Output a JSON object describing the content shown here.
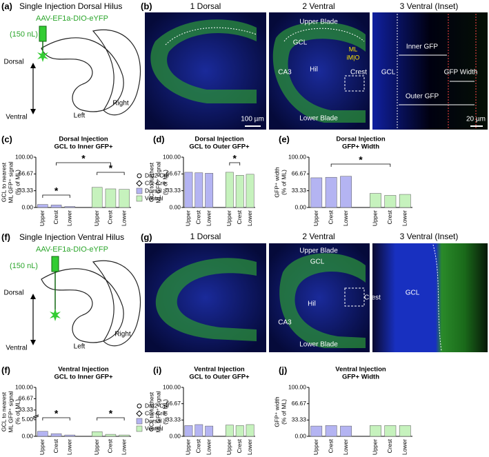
{
  "panel_labels": [
    "(a)",
    "(b)",
    "(c)",
    "(d)",
    "(e)",
    "(f)",
    "(g)",
    "(f)",
    "(i)",
    "(j)"
  ],
  "diagrams": [
    {
      "title": "Single Injection Dorsal Hilus",
      "virus": "AAV-EF1a-DIO-eYFP",
      "volume": "(150 nL)",
      "labels": [
        "Dorsal",
        "Ventral",
        "Left",
        "Right"
      ]
    },
    {
      "title": "Single Injection Ventral Hilus",
      "virus": "AAV-EF1a-DIO-eYFP",
      "volume": "(150 nL)",
      "labels": [
        "Dorsal",
        "Ventral",
        "Left",
        "Right"
      ]
    }
  ],
  "micrographs": [
    {
      "views": [
        "1 Dorsal",
        "2 Ventral",
        "3 Ventral (Inset)"
      ],
      "labels": [
        "Upper Blade",
        "GCL",
        "ML",
        "iM|O",
        "CA3",
        "Hil",
        "Crest",
        "Lower Blade",
        "100 µm",
        "GCL",
        "Inner GFP",
        "GFP Width",
        "Outer GFP",
        "20 µm"
      ]
    },
    {
      "views": [
        "1 Dorsal",
        "2 Ventral",
        "3 Ventral (Inset)"
      ],
      "labels": [
        "Upper Blade",
        "GCL",
        "Hil",
        "Crest",
        "CA3",
        "Lower Blade",
        "GCL"
      ]
    }
  ],
  "chart_data": [
    {
      "type": "bar",
      "title": [
        "Dorsal Injection",
        "GCL to Inner GFP+"
      ],
      "ylabel": [
        "GCL to nearest",
        "ML GFP⁺ signal",
        "(% of ML)"
      ],
      "categories": [
        "Upper",
        "Crest",
        "Lower"
      ],
      "series": [
        {
          "name": "Dorsal",
          "color": "#b4b4f2",
          "values": [
            6,
            5,
            2
          ]
        },
        {
          "name": "Ventral",
          "color": "#c6f2bd",
          "values": [
            40,
            37,
            36
          ]
        }
      ],
      "markers": [
        {
          "name": "Drd2-Cre",
          "shape": "circle"
        },
        {
          "name": "Crlr-Cre",
          "shape": "diamond"
        }
      ],
      "ylim": [
        0,
        100
      ],
      "yticks": [
        {
          "value": 0,
          "label": "0.00"
        },
        33.33,
        66.67,
        {
          "value": 100,
          "label": "100.00"
        }
      ],
      "annotations": [
        "*",
        "*",
        "*"
      ]
    },
    {
      "type": "bar",
      "title": [
        "Dorsal Injection",
        "GCL to Outer GFP+"
      ],
      "ylabel": [
        "GCL to furthest",
        "ML GFP⁺ signal",
        "(% of ML)"
      ],
      "categories": [
        "Upper",
        "Crest",
        "Lower"
      ],
      "series": [
        {
          "color": "#b4b4f2",
          "values": [
            70,
            69,
            68
          ]
        },
        {
          "color": "#c6f2bd",
          "values": [
            70,
            64,
            66
          ]
        }
      ],
      "ylim": [
        0,
        100
      ],
      "yticks": [
        {
          "value": 0,
          "label": "0.00"
        },
        33.33,
        66.67,
        {
          "value": 100,
          "label": "100.00"
        }
      ],
      "annotations": [
        "*"
      ]
    },
    {
      "type": "bar",
      "title": [
        "Dorsal Injection",
        "GFP+ Width"
      ],
      "ylabel": [
        "GFP⁺ width",
        "(% of ML)"
      ],
      "categories": [
        "Upper",
        "Crest",
        "Lower"
      ],
      "series": [
        {
          "color": "#b4b4f2",
          "values": [
            59,
            60,
            62
          ]
        },
        {
          "color": "#c6f2bd",
          "values": [
            28,
            24,
            26
          ]
        }
      ],
      "ylim": [
        0,
        100
      ],
      "yticks": [
        {
          "value": 0,
          "label": "0.00"
        },
        33.33,
        66.67,
        {
          "value": 100,
          "label": "100.00"
        }
      ],
      "annotations": [
        "*"
      ]
    },
    {
      "type": "bar",
      "title": [
        "Ventral Injection",
        "GCL to Inner GFP+"
      ],
      "ylabel": [
        "GCL to nearest",
        "ML GFP⁺ signal",
        "(% of ML)"
      ],
      "categories": [
        "Upper",
        "Crest",
        "Lower"
      ],
      "series": [
        {
          "name": "Dorsal",
          "color": "#b4b4f2",
          "values": [
            1.5,
            0.8,
            0.4
          ]
        },
        {
          "name": "Ventral",
          "color": "#c6f2bd",
          "values": [
            1.4,
            0.6,
            0.4
          ]
        }
      ],
      "markers": [
        {
          "name": "Drd2-Cre",
          "shape": "circle"
        },
        {
          "name": "Crlr-Cre",
          "shape": "diamond"
        }
      ],
      "ylim": [
        0,
        100
      ],
      "ybreak": 5,
      "yticks": [
        {
          "value": 0,
          "label": "0.00"
        },
        {
          "value": 5,
          "label": "5.00"
        },
        33.33,
        66.67,
        {
          "value": 100,
          "label": "100.00"
        }
      ],
      "annotations": [
        "*",
        "*"
      ]
    },
    {
      "type": "bar",
      "title": [
        "Ventral Injection",
        "GCL to Outer GFP+"
      ],
      "ylabel": [
        "GCL to furthest",
        "ML GFP⁺ signal",
        "(% of ML)"
      ],
      "categories": [
        "Upper",
        "Crest",
        "Lower"
      ],
      "series": [
        {
          "color": "#b4b4f2",
          "values": [
            22,
            24,
            21
          ]
        },
        {
          "color": "#c6f2bd",
          "values": [
            23,
            22,
            24
          ]
        }
      ],
      "ylim": [
        0,
        100
      ],
      "yticks": [
        {
          "value": 0,
          "label": "0.00"
        },
        33.33,
        66.67,
        {
          "value": 100,
          "label": "100.00"
        }
      ]
    },
    {
      "type": "bar",
      "title": [
        "Ventral Injection",
        "GFP+ Width"
      ],
      "ylabel": [
        "GFP⁺ width",
        "(% of ML)"
      ],
      "categories": [
        "Upper",
        "Crest",
        "Lower"
      ],
      "series": [
        {
          "color": "#b4b4f2",
          "values": [
            21,
            22,
            21
          ]
        },
        {
          "color": "#c6f2bd",
          "values": [
            22,
            22,
            22
          ]
        }
      ],
      "ylim": [
        0,
        100
      ],
      "yticks": [
        {
          "value": 0,
          "label": "0.00"
        },
        33.33,
        66.67,
        {
          "value": 100,
          "label": "100.00"
        }
      ]
    }
  ]
}
